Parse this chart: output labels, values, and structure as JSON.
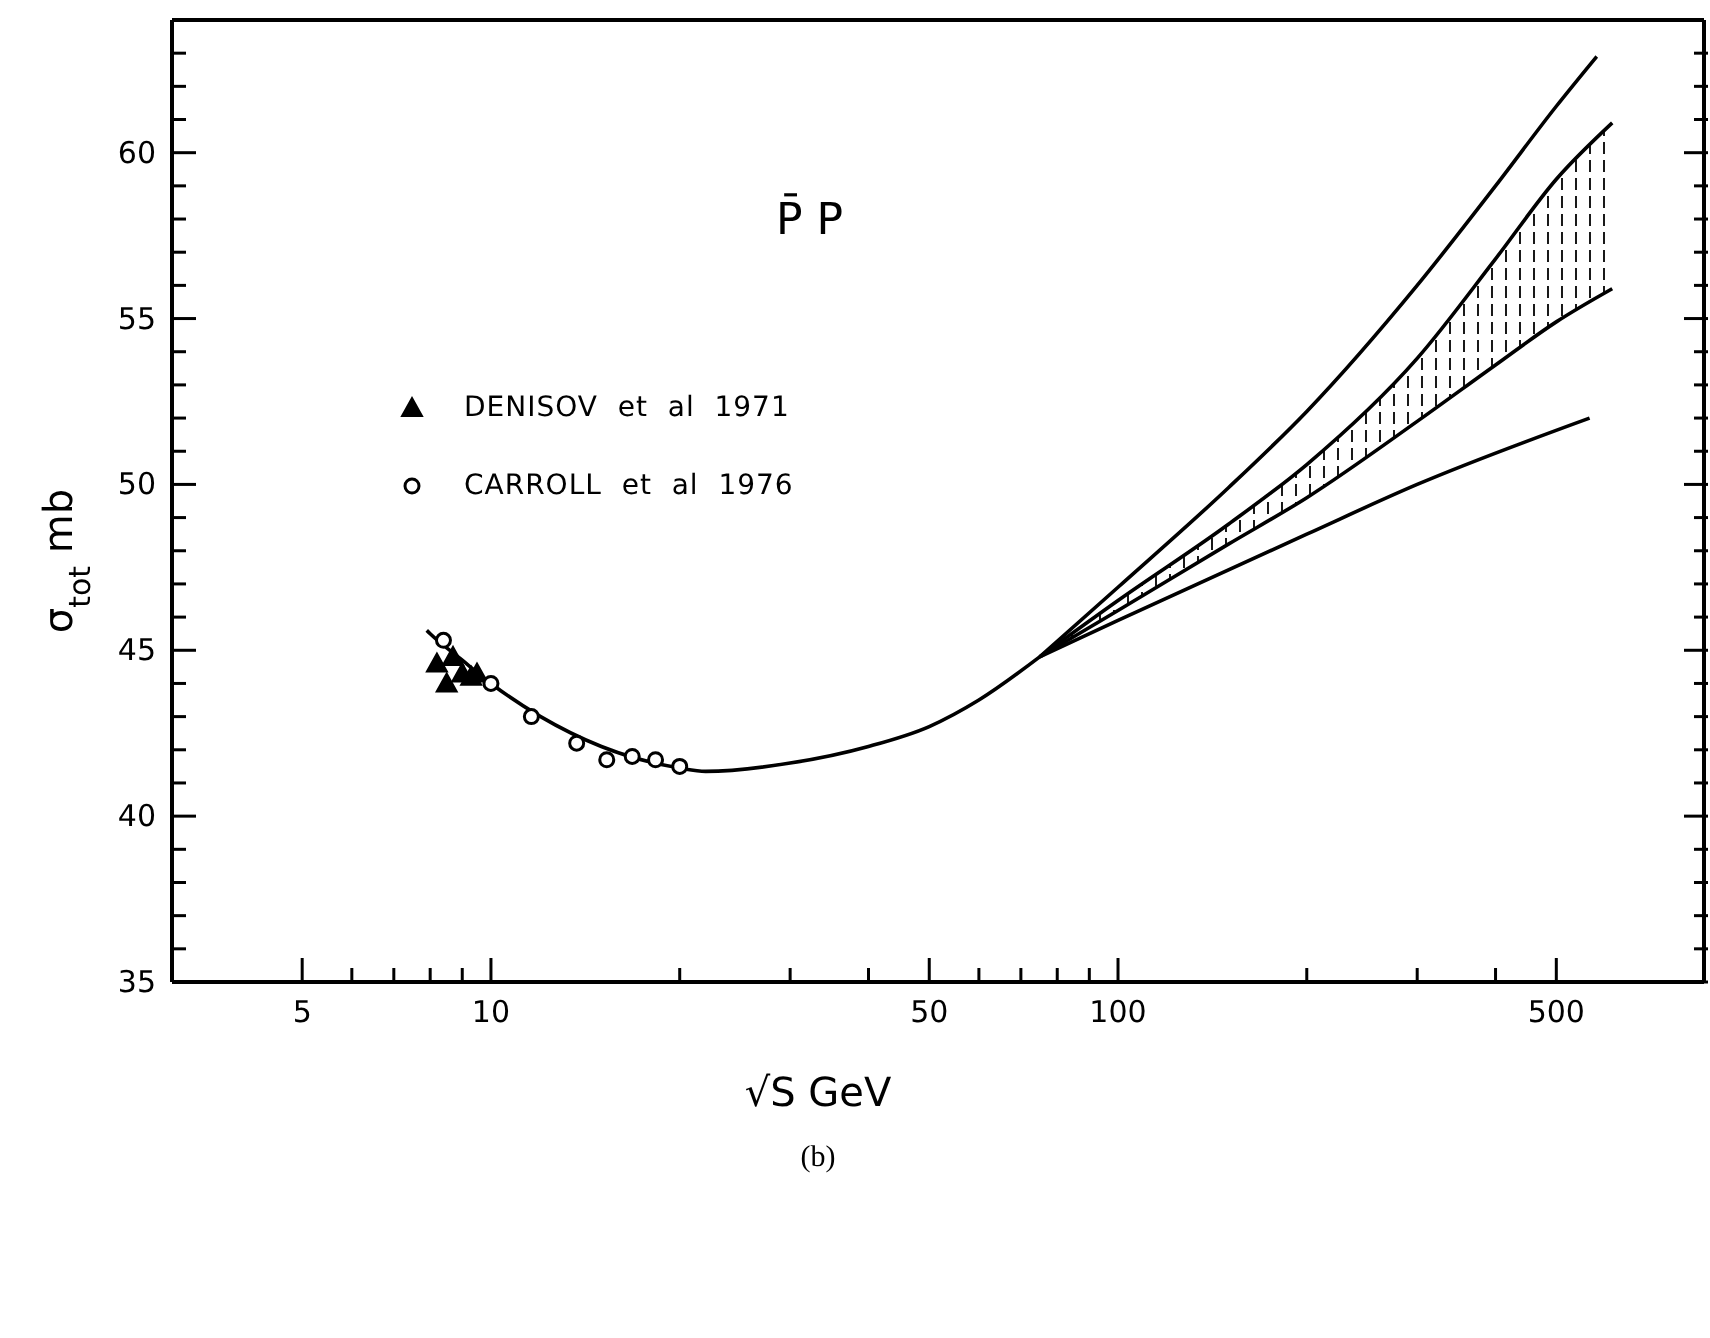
{
  "chart_data": {
    "type": "line",
    "xlabel": "√S  GeV",
    "ylabel": "σ$_{tot}$  mb",
    "annotations": [
      "P̄ P",
      "(b)"
    ],
    "log": "x",
    "grid": false,
    "legend": "top left",
    "xlim": [
      3.1,
      860
    ],
    "ylim": [
      35,
      64
    ],
    "xticks": [
      5,
      {
        "value": 6,
        "label": null
      },
      {
        "value": 7,
        "label": null
      },
      {
        "value": 8,
        "label": null
      },
      {
        "value": 9,
        "label": null
      },
      10,
      {
        "value": 20,
        "label": null
      },
      {
        "value": 30,
        "label": null
      },
      {
        "value": 40,
        "label": null
      },
      50,
      {
        "value": 60,
        "label": null
      },
      {
        "value": 70,
        "label": null
      },
      {
        "value": 80,
        "label": null
      },
      {
        "value": 90,
        "label": null
      },
      100,
      {
        "value": 200,
        "label": null
      },
      {
        "value": 300,
        "label": null
      },
      {
        "value": 400,
        "label": null
      },
      500
    ],
    "yticks": [
      35,
      {
        "value": 36,
        "label": null
      },
      {
        "value": 37,
        "label": null
      },
      {
        "value": 38,
        "label": null
      },
      {
        "value": 39,
        "label": null
      },
      40,
      {
        "value": 41,
        "label": null
      },
      {
        "value": 42,
        "label": null
      },
      {
        "value": 43,
        "label": null
      },
      {
        "value": 44,
        "label": null
      },
      45,
      {
        "value": 46,
        "label": null
      },
      {
        "value": 47,
        "label": null
      },
      {
        "value": 48,
        "label": null
      },
      {
        "value": 49,
        "label": null
      },
      50,
      {
        "value": 51,
        "label": null
      },
      {
        "value": 52,
        "label": null
      },
      {
        "value": 53,
        "label": null
      },
      {
        "value": 54,
        "label": null
      },
      55,
      {
        "value": 56,
        "label": null
      },
      {
        "value": 57,
        "label": null
      },
      {
        "value": 58,
        "label": null
      },
      {
        "value": 59,
        "label": null
      },
      60,
      {
        "value": 61,
        "label": null
      },
      {
        "value": 62,
        "label": null
      },
      {
        "value": 63,
        "label": null
      }
    ],
    "series": [
      {
        "name": "DENISOV  et  al  1971",
        "type": "scatter",
        "marker": "triangle",
        "color": "#000000",
        "x": [
          8.2,
          8.5,
          8.7,
          9.0,
          9.3,
          9.5
        ],
        "values": [
          44.6,
          44.0,
          44.8,
          44.3,
          44.2,
          44.3
        ]
      },
      {
        "name": "CARROLL  et  al  1976",
        "type": "scatter",
        "marker": "circle",
        "color": "#000000",
        "x": [
          8.4,
          10,
          11.6,
          13.7,
          15.3,
          16.8,
          18.3,
          20.0
        ],
        "values": [
          45.3,
          44.0,
          43.0,
          42.2,
          41.7,
          41.8,
          41.7,
          41.5
        ]
      },
      {
        "color": "#000000",
        "x": [
          7.9,
          8,
          9,
          10,
          12,
          15,
          20,
          22,
          30,
          40,
          50,
          60,
          75
        ],
        "values": [
          45.6,
          45.5,
          44.7,
          44.0,
          43.0,
          42.1,
          41.45,
          41.35,
          41.6,
          42.1,
          42.7,
          43.5,
          44.8
        ]
      },
      {
        "color": "#000000",
        "x": [
          75,
          100,
          150,
          200,
          300,
          400,
          500,
          580
        ],
        "values": [
          44.8,
          46.9,
          49.9,
          52.2,
          56.0,
          59.0,
          61.4,
          62.9
        ]
      },
      {
        "color": "#000000",
        "x": [
          75,
          100,
          150,
          200,
          300,
          400,
          500,
          614
        ],
        "values": [
          44.8,
          46.5,
          48.8,
          50.6,
          53.8,
          56.8,
          59.2,
          60.9
        ],
        "upper": [
          44.8,
          46.5,
          48.8,
          50.6,
          53.8,
          56.8,
          59.2,
          60.9
        ],
        "lower": [
          44.8,
          46.2,
          48.2,
          49.6,
          51.9,
          53.6,
          54.9,
          55.9
        ]
      },
      {
        "color": "#000000",
        "x": [
          75,
          100,
          150,
          200,
          300,
          400,
          500,
          614
        ],
        "values": [
          44.8,
          46.2,
          48.2,
          49.6,
          51.9,
          53.6,
          54.9,
          55.9
        ]
      },
      {
        "color": "#000000",
        "x": [
          75,
          100,
          200,
          300,
          565
        ],
        "values": [
          44.8,
          45.9,
          48.5,
          50.0,
          52.0
        ]
      }
    ]
  }
}
